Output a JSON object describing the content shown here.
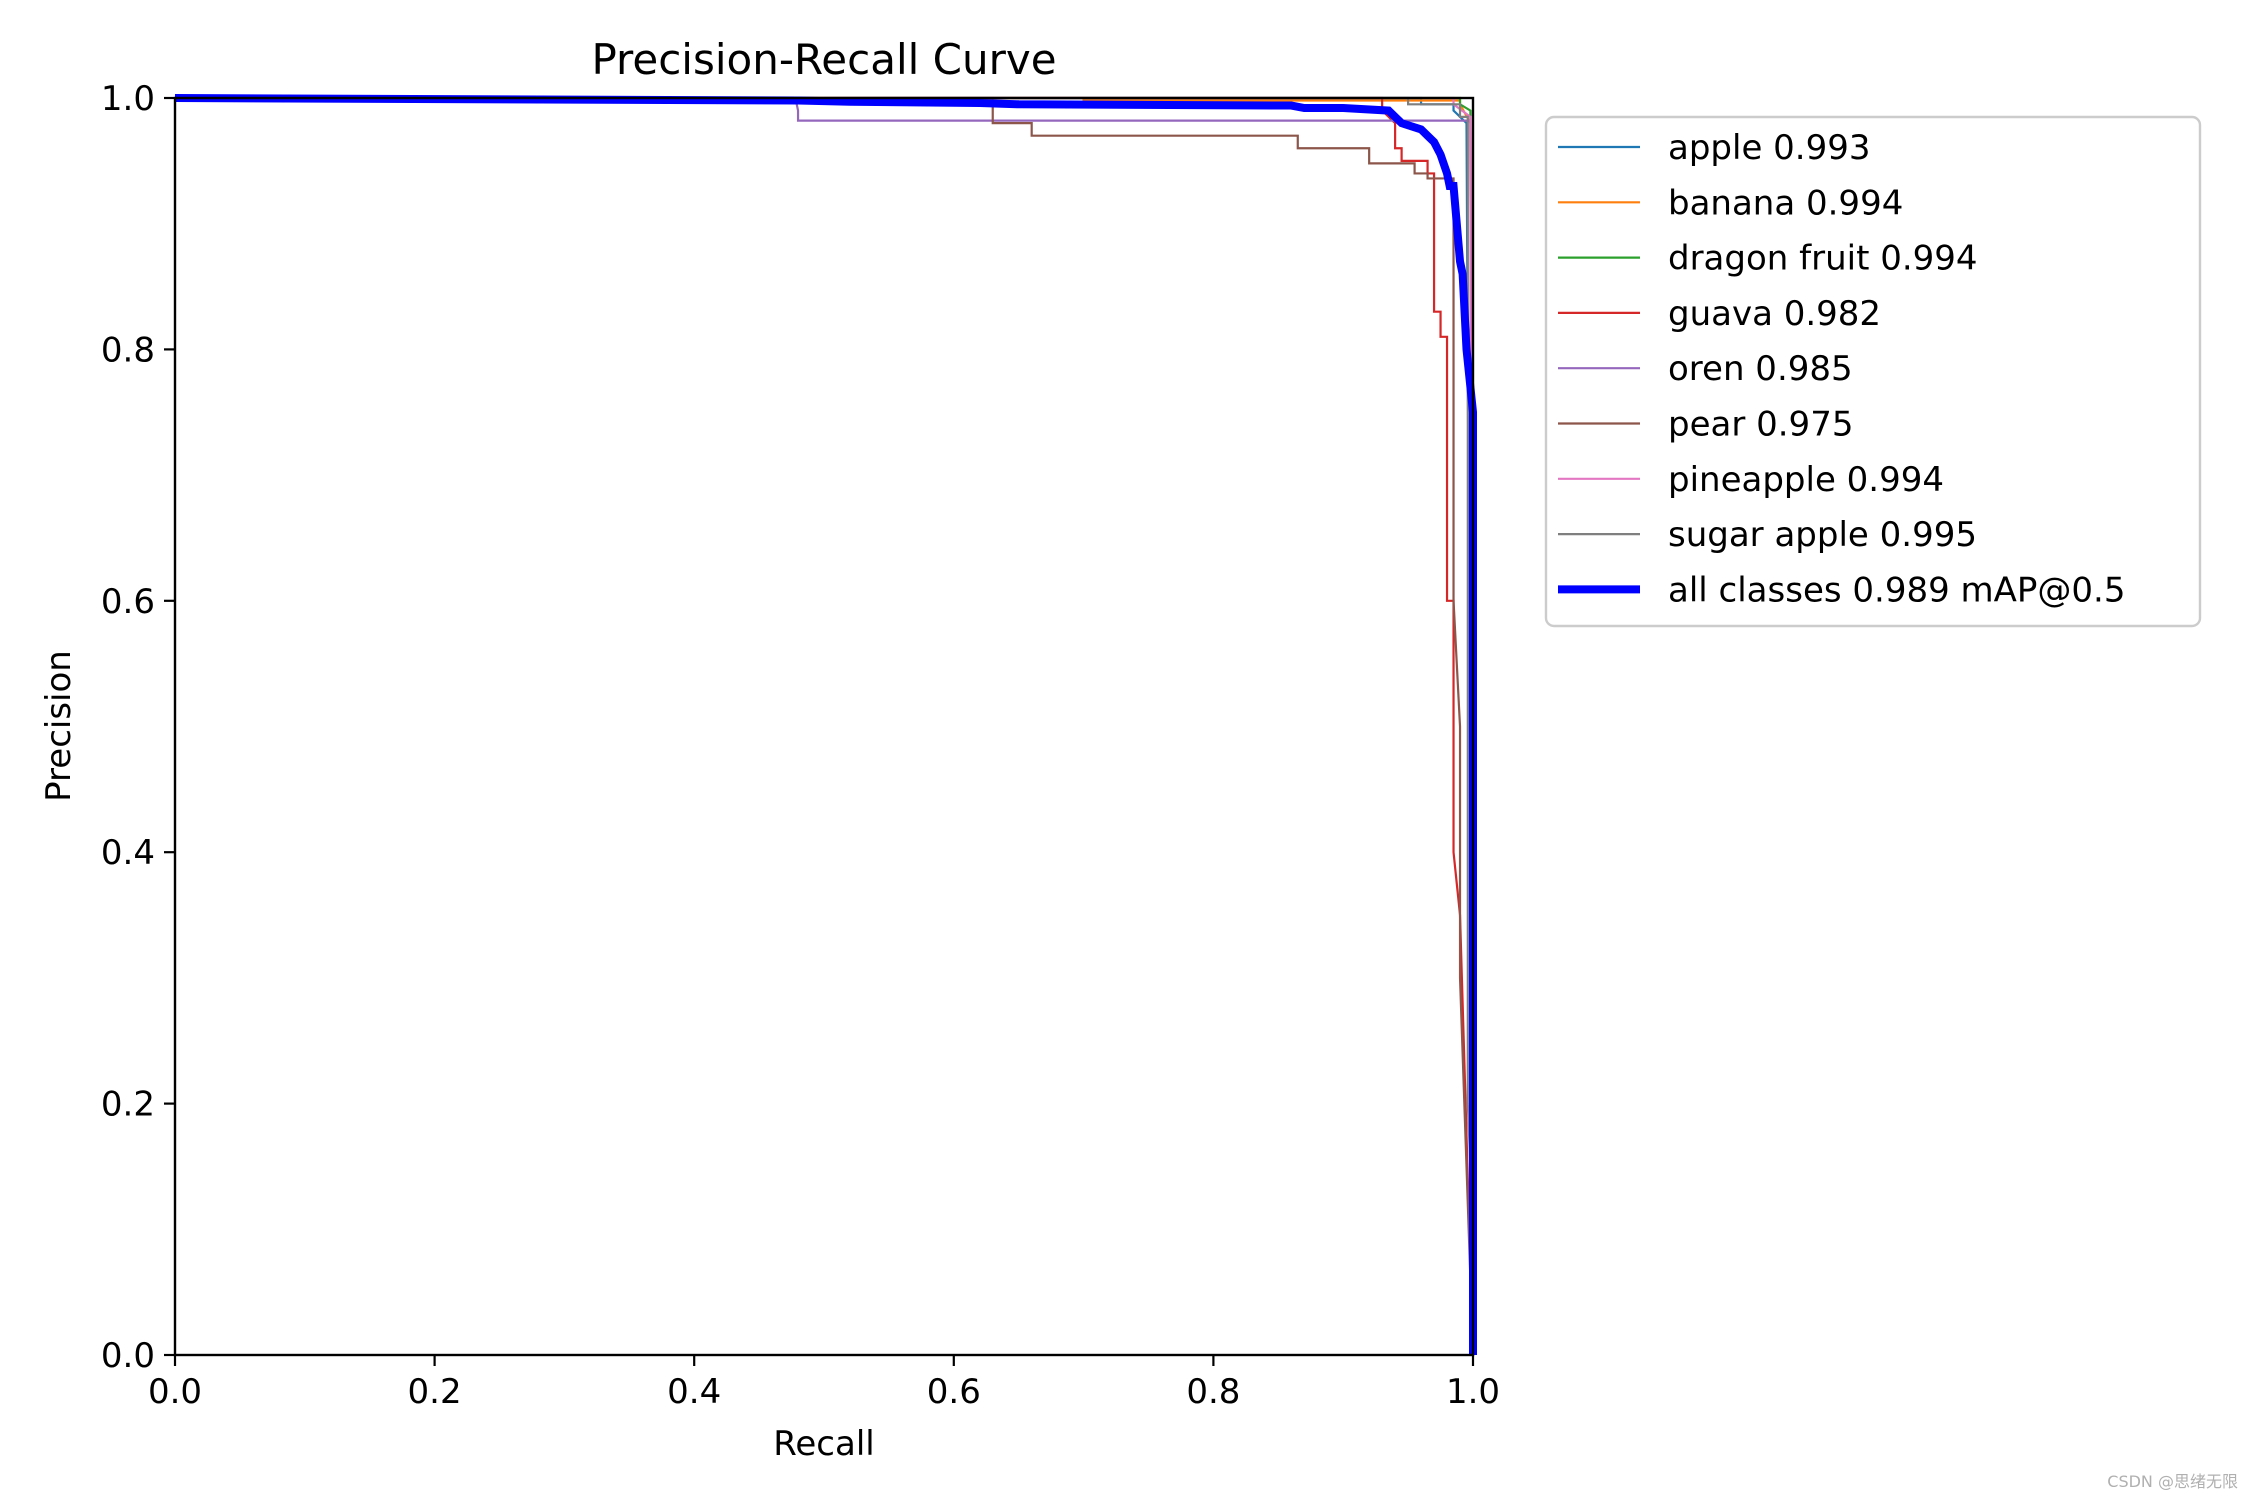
{
  "chart_data": {
    "type": "line",
    "title": "Precision-Recall Curve",
    "xlabel": "Recall",
    "ylabel": "Precision",
    "xlim": [
      0,
      1
    ],
    "ylim": [
      0,
      1
    ],
    "xticks": [
      "0.0",
      "0.2",
      "0.4",
      "0.6",
      "0.8",
      "1.0"
    ],
    "yticks": [
      "0.0",
      "0.2",
      "0.4",
      "0.6",
      "0.8",
      "1.0"
    ],
    "grid": false,
    "legend_position": "outside-top-right",
    "series": [
      {
        "name": "apple 0.993",
        "color": "#1f77b4",
        "width": "thin",
        "x": [
          0,
          0.96,
          0.96,
          0.985,
          0.985,
          0.995,
          1.0
        ],
        "y": [
          1.0,
          1.0,
          0.995,
          0.995,
          0.99,
          0.98,
          0.0
        ]
      },
      {
        "name": "banana 0.994",
        "color": "#ff7f0e",
        "width": "thin",
        "x": [
          0,
          0.7,
          0.7,
          0.99,
          0.99,
          0.998,
          1.0
        ],
        "y": [
          1.0,
          1.0,
          0.998,
          0.998,
          0.995,
          0.98,
          0.0
        ]
      },
      {
        "name": "dragon fruit 0.994",
        "color": "#2ca02c",
        "width": "thin",
        "x": [
          0,
          0.99,
          0.99,
          0.998,
          1.0
        ],
        "y": [
          1.0,
          1.0,
          0.995,
          0.99,
          0.0
        ]
      },
      {
        "name": "guava 0.982",
        "color": "#d62728",
        "width": "thin",
        "x": [
          0,
          0.93,
          0.93,
          0.94,
          0.94,
          0.945,
          0.945,
          0.965,
          0.965,
          0.97,
          0.97,
          0.975,
          0.975,
          0.98,
          0.98,
          0.985,
          0.985,
          0.99,
          1.0
        ],
        "y": [
          1.0,
          1.0,
          0.99,
          0.98,
          0.96,
          0.96,
          0.95,
          0.95,
          0.94,
          0.94,
          0.83,
          0.83,
          0.81,
          0.81,
          0.6,
          0.6,
          0.4,
          0.35,
          0.0
        ]
      },
      {
        "name": "oren 0.985",
        "color": "#9467bd",
        "width": "thin",
        "x": [
          0,
          0.478,
          0.48,
          0.48,
          0.998,
          1.0
        ],
        "y": [
          1.0,
          1.0,
          0.99,
          0.982,
          0.982,
          0.0
        ]
      },
      {
        "name": "pear 0.975",
        "color": "#8c564b",
        "width": "thin",
        "x": [
          0,
          0.63,
          0.63,
          0.66,
          0.66,
          0.865,
          0.865,
          0.92,
          0.92,
          0.955,
          0.955,
          0.965,
          0.965,
          0.985,
          0.985,
          0.99,
          0.99,
          1.0
        ],
        "y": [
          1.0,
          1.0,
          0.98,
          0.98,
          0.97,
          0.97,
          0.96,
          0.96,
          0.948,
          0.948,
          0.94,
          0.94,
          0.936,
          0.936,
          0.6,
          0.5,
          0.3,
          0.0
        ]
      },
      {
        "name": "pineapple 0.994",
        "color": "#e377c2",
        "width": "thin",
        "x": [
          0,
          0.985,
          0.985,
          0.998,
          1.0
        ],
        "y": [
          1.0,
          1.0,
          0.995,
          0.985,
          0.0
        ]
      },
      {
        "name": "sugar apple 0.995",
        "color": "#7f7f7f",
        "width": "thin",
        "x": [
          0,
          0.95,
          0.95,
          0.99,
          0.99,
          0.996,
          0.996,
          1.0,
          1.0
        ],
        "y": [
          1.0,
          1.0,
          0.995,
          0.995,
          0.985,
          0.985,
          0.2,
          0.1,
          0.0
        ]
      },
      {
        "name": "all classes 0.989 mAP@0.5",
        "color": "#0000ff",
        "width": "thick",
        "x": [
          0,
          0.48,
          0.52,
          0.62,
          0.65,
          0.86,
          0.87,
          0.9,
          0.935,
          0.94,
          0.945,
          0.96,
          0.965,
          0.97,
          0.975,
          0.98,
          0.982,
          0.985,
          0.99,
          0.992,
          0.995,
          1.0,
          1.0
        ],
        "y": [
          1.0,
          0.998,
          0.997,
          0.996,
          0.995,
          0.994,
          0.992,
          0.992,
          0.99,
          0.985,
          0.98,
          0.975,
          0.97,
          0.965,
          0.955,
          0.94,
          0.93,
          0.93,
          0.87,
          0.86,
          0.8,
          0.75,
          0.0
        ]
      }
    ]
  },
  "watermark": "CSDN @思绪无限"
}
